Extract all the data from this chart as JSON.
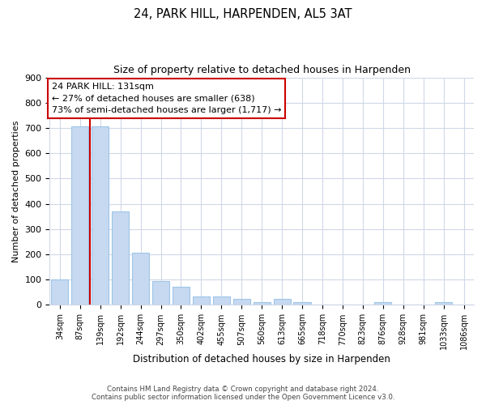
{
  "title1": "24, PARK HILL, HARPENDEN, AL5 3AT",
  "title2": "Size of property relative to detached houses in Harpenden",
  "xlabel": "Distribution of detached houses by size in Harpenden",
  "ylabel": "Number of detached properties",
  "bar_labels": [
    "34sqm",
    "87sqm",
    "139sqm",
    "192sqm",
    "244sqm",
    "297sqm",
    "350sqm",
    "402sqm",
    "455sqm",
    "507sqm",
    "560sqm",
    "613sqm",
    "665sqm",
    "718sqm",
    "770sqm",
    "823sqm",
    "876sqm",
    "928sqm",
    "981sqm",
    "1033sqm",
    "1086sqm"
  ],
  "bar_values": [
    100,
    707,
    707,
    370,
    207,
    95,
    71,
    35,
    35,
    25,
    10,
    25,
    10,
    0,
    0,
    0,
    10,
    0,
    0,
    10,
    0
  ],
  "bar_color": "#c6d9f0",
  "bar_edge_color": "#9ec6e8",
  "vline_index": 1.5,
  "annotation_line1": "24 PARK HILL: 131sqm",
  "annotation_line2": "← 27% of detached houses are smaller (638)",
  "annotation_line3": "73% of semi-detached houses are larger (1,717) →",
  "annotation_box_color": "#ffffff",
  "annotation_box_edge": "#cc0000",
  "vline_color": "#cc0000",
  "ylim": [
    0,
    900
  ],
  "yticks": [
    0,
    100,
    200,
    300,
    400,
    500,
    600,
    700,
    800,
    900
  ],
  "footer_line1": "Contains HM Land Registry data © Crown copyright and database right 2024.",
  "footer_line2": "Contains public sector information licensed under the Open Government Licence v3.0.",
  "bg_color": "#ffffff",
  "grid_color": "#d0d8e8"
}
